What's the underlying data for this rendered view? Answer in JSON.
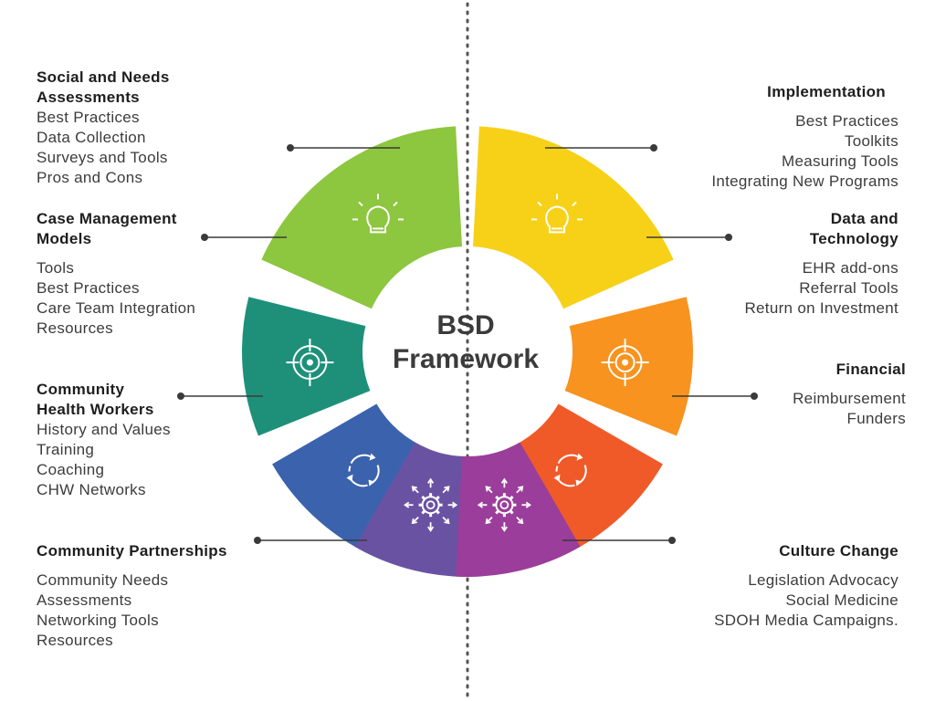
{
  "center": {
    "line1": "BSD",
    "line2": "Framework"
  },
  "segments": [
    {
      "name": "social-needs",
      "color": "#8dc63f",
      "icon": "lightbulb-icon"
    },
    {
      "name": "implementation",
      "color": "#f7d117",
      "icon": "lightbulb-icon"
    },
    {
      "name": "case-management",
      "color": "#1e9079",
      "icon": "target-icon"
    },
    {
      "name": "data-technology",
      "color": "#f7931e",
      "icon": "target-icon"
    },
    {
      "name": "community-health-workers",
      "color": "#3b62ad",
      "icon": "cycle-arrows-icon"
    },
    {
      "name": "financial",
      "color": "#f05a28",
      "icon": "cycle-arrows-icon"
    },
    {
      "name": "community-partnerships",
      "color": "#6a52a3",
      "icon": "gear-arrows-icon"
    },
    {
      "name": "culture-change",
      "color": "#9b3d9a",
      "icon": "gear-arrows-icon"
    }
  ],
  "left": {
    "social": {
      "h1": "Social and Needs",
      "h2": "Assessments",
      "items": [
        "Best Practices",
        "Data Collection",
        "Surveys and Tools",
        "Pros and Cons"
      ]
    },
    "case": {
      "h1": "Case Management",
      "h2": "Models",
      "items": [
        "Tools",
        "Best Practices",
        "Care Team Integration",
        "Resources"
      ]
    },
    "chw": {
      "h1": "Community",
      "h2": "Health Workers",
      "items": [
        "History and Values",
        "Training",
        "Coaching",
        "CHW Networks"
      ]
    },
    "partnerships": {
      "h1": "Community Partnerships",
      "items": [
        "Community Needs",
        "Assessments",
        "Networking Tools",
        "Resources"
      ]
    }
  },
  "right": {
    "implementation": {
      "h1": "Implementation",
      "items": [
        "Best Practices",
        "Toolkits",
        "Measuring Tools",
        "Integrating New Programs"
      ]
    },
    "data": {
      "h1": "Data and",
      "h2": "Technology",
      "items": [
        "EHR add-ons",
        "Referral Tools",
        "Return on Investment"
      ]
    },
    "financial": {
      "h1": "Financial",
      "items": [
        "Reimbursement",
        "Funders"
      ]
    },
    "culture": {
      "h1": "Culture Change",
      "items": [
        "Legislation Advocacy",
        "Social Medicine",
        "SDOH Media Campaigns."
      ]
    }
  }
}
